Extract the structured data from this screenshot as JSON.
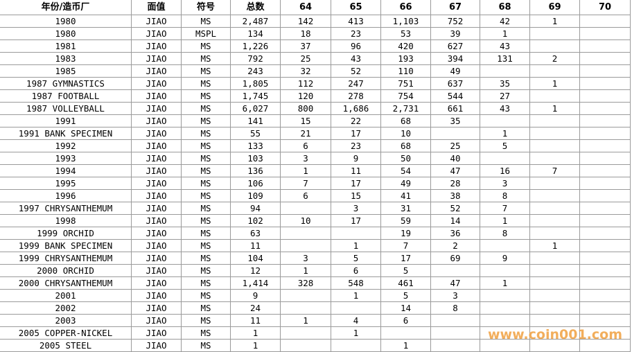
{
  "table": {
    "header": [
      "年份/造币厂",
      "面值",
      "符号",
      "总数",
      "64",
      "65",
      "66",
      "67",
      "68",
      "69",
      "70"
    ],
    "rows": [
      [
        "1980",
        "JIAO",
        "MS",
        "2,487",
        "142",
        "413",
        "1,103",
        "752",
        "42",
        "1",
        null
      ],
      [
        "1980",
        "JIAO",
        "MSPL",
        "134",
        "18",
        "23",
        "53",
        "39",
        "1",
        null,
        null
      ],
      [
        "1981",
        "JIAO",
        "MS",
        "1,226",
        "37",
        "96",
        "420",
        "627",
        "43",
        null,
        null
      ],
      [
        "1983",
        "JIAO",
        "MS",
        "792",
        "25",
        "43",
        "193",
        "394",
        "131",
        "2",
        null
      ],
      [
        "1985",
        "JIAO",
        "MS",
        "243",
        "32",
        "52",
        "110",
        "49",
        null,
        null,
        null
      ],
      [
        "1987 GYMNASTICS",
        "JIAO",
        "MS",
        "1,805",
        "112",
        "247",
        "751",
        "637",
        "35",
        "1",
        null
      ],
      [
        "1987 FOOTBALL",
        "JIAO",
        "MS",
        "1,745",
        "120",
        "278",
        "754",
        "544",
        "27",
        null,
        null
      ],
      [
        "1987 VOLLEYBALL",
        "JIAO",
        "MS",
        "6,027",
        "800",
        "1,686",
        "2,731",
        "661",
        "43",
        "1",
        null
      ],
      [
        "1991",
        "JIAO",
        "MS",
        "141",
        "15",
        "22",
        "68",
        "35",
        null,
        null,
        null
      ],
      [
        "1991 BANK SPECIMEN",
        "JIAO",
        "MS",
        "55",
        "21",
        "17",
        "10",
        null,
        "1",
        null,
        null
      ],
      [
        "1992",
        "JIAO",
        "MS",
        "133",
        "6",
        "23",
        "68",
        "25",
        "5",
        null,
        null
      ],
      [
        "1993",
        "JIAO",
        "MS",
        "103",
        "3",
        "9",
        "50",
        "40",
        null,
        null,
        null
      ],
      [
        "1994",
        "JIAO",
        "MS",
        "136",
        "1",
        "11",
        "54",
        "47",
        "16",
        "7",
        null
      ],
      [
        "1995",
        "JIAO",
        "MS",
        "106",
        "7",
        "17",
        "49",
        "28",
        "3",
        null,
        null
      ],
      [
        "1996",
        "JIAO",
        "MS",
        "109",
        "6",
        "15",
        "41",
        "38",
        "8",
        null,
        null
      ],
      [
        "1997 CHRYSANTHEMUM",
        "JIAO",
        "MS",
        "94",
        null,
        "3",
        "31",
        "52",
        "7",
        null,
        null
      ],
      [
        "1998",
        "JIAO",
        "MS",
        "102",
        "10",
        "17",
        "59",
        "14",
        "1",
        null,
        null
      ],
      [
        "1999 ORCHID",
        "JIAO",
        "MS",
        "63",
        null,
        null,
        "19",
        "36",
        "8",
        null,
        null
      ],
      [
        "1999 BANK SPECIMEN",
        "JIAO",
        "MS",
        "11",
        null,
        "1",
        "7",
        "2",
        null,
        "1",
        null
      ],
      [
        "1999 CHRYSANTHEMUM",
        "JIAO",
        "MS",
        "104",
        "3",
        "5",
        "17",
        "69",
        "9",
        null,
        null
      ],
      [
        "2000 ORCHID",
        "JIAO",
        "MS",
        "12",
        "1",
        "6",
        "5",
        null,
        null,
        null,
        null
      ],
      [
        "2000 CHRYSANTHEMUM",
        "JIAO",
        "MS",
        "1,414",
        "328",
        "548",
        "461",
        "47",
        "1",
        null,
        null
      ],
      [
        "2001",
        "JIAO",
        "MS",
        "9",
        null,
        "1",
        "5",
        "3",
        null,
        null,
        null
      ],
      [
        "2002",
        "JIAO",
        "MS",
        "24",
        null,
        null,
        "14",
        "8",
        null,
        null,
        null
      ],
      [
        "2003",
        "JIAO",
        "MS",
        "11",
        "1",
        "4",
        "6",
        null,
        null,
        null,
        null
      ],
      [
        "2005 COPPER-NICKEL",
        "JIAO",
        "MS",
        "1",
        null,
        "1",
        null,
        null,
        null,
        null,
        null
      ],
      [
        "2005 STEEL",
        "JIAO",
        "MS",
        "1",
        null,
        null,
        "1",
        null,
        null,
        null,
        null
      ]
    ]
  },
  "watermark": "www.coin001.com"
}
